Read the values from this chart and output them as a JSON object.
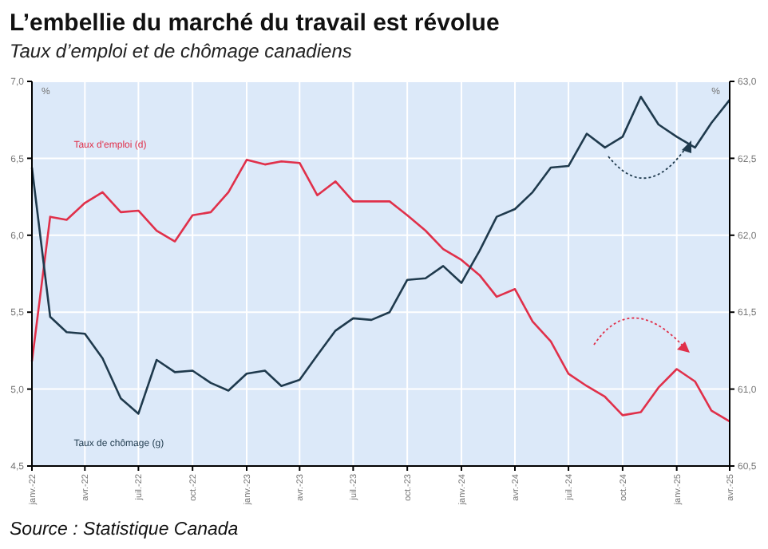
{
  "chart_data": {
    "type": "line",
    "title": "L’embellie du marché du travail est révolue",
    "subtitle": "Taux d’emploi et de chômage canadiens",
    "ylabel": "%",
    "y2label": "%",
    "annotations": [
      "Source : Statistique Canada"
    ],
    "x": [
      "2022-01",
      "2022-02",
      "2022-03",
      "2022-04",
      "2022-05",
      "2022-06",
      "2022-07",
      "2022-08",
      "2022-09",
      "2022-10",
      "2022-11",
      "2022-12",
      "2023-01",
      "2023-02",
      "2023-03",
      "2023-04",
      "2023-05",
      "2023-06",
      "2023-07",
      "2023-08",
      "2023-09",
      "2023-10",
      "2023-11",
      "2023-12",
      "2024-01",
      "2024-02",
      "2024-03",
      "2024-04",
      "2024-05",
      "2024-06",
      "2024-07",
      "2024-08",
      "2024-09",
      "2024-10",
      "2024-11",
      "2024-12",
      "2025-01",
      "2025-02",
      "2025-03",
      "2025-04"
    ],
    "series": [
      {
        "name": "Taux d'emploi (d)",
        "color": "#e0304a",
        "axis": "y2",
        "values": [
          61.18,
          62.12,
          62.1,
          62.21,
          62.28,
          62.15,
          62.16,
          62.03,
          61.96,
          62.13,
          62.15,
          62.28,
          62.49,
          62.46,
          62.48,
          62.47,
          62.26,
          62.35,
          62.22,
          62.22,
          62.22,
          62.13,
          62.03,
          61.91,
          61.84,
          61.74,
          61.6,
          61.65,
          61.44,
          61.31,
          61.1,
          61.02,
          60.95,
          60.83,
          60.85,
          61.01,
          61.13,
          61.05,
          60.86,
          60.79
        ]
      },
      {
        "name": "Taux de chômage (g)",
        "color": "#1f3a4d",
        "values": [
          6.44,
          5.47,
          5.37,
          5.36,
          5.2,
          4.94,
          4.84,
          5.19,
          5.11,
          5.12,
          5.04,
          4.99,
          5.1,
          5.12,
          5.02,
          5.06,
          5.22,
          5.38,
          5.46,
          5.45,
          5.5,
          5.71,
          5.72,
          5.8,
          5.69,
          5.9,
          6.12,
          6.17,
          6.28,
          6.44,
          6.45,
          6.66,
          6.57,
          6.64,
          6.9,
          6.72,
          6.64,
          6.57,
          6.73,
          6.88
        ]
      }
    ],
    "xlim": [
      "2022-01",
      "2025-04"
    ],
    "xticks": [
      {
        "value": "2022-01",
        "label": "janv.-22"
      },
      {
        "value": "2022-04",
        "label": "avr.-22"
      },
      {
        "value": "2022-07",
        "label": "juil.-22"
      },
      {
        "value": "2022-10",
        "label": "oct.-22"
      },
      {
        "value": "2023-01",
        "label": "janv.-23"
      },
      {
        "value": "2023-04",
        "label": "avr.-23"
      },
      {
        "value": "2023-07",
        "label": "juil.-23"
      },
      {
        "value": "2023-10",
        "label": "oct.-23"
      },
      {
        "value": "2024-01",
        "label": "janv.-24"
      },
      {
        "value": "2024-04",
        "label": "avr.-24"
      },
      {
        "value": "2024-07",
        "label": "juil.-24"
      },
      {
        "value": "2024-10",
        "label": "oct.-24"
      },
      {
        "value": "2025-01",
        "label": "janv.-25"
      },
      {
        "value": "2025-04",
        "label": "avr.-25"
      }
    ],
    "ylim": [
      4.5,
      7
    ],
    "yticks": [
      {
        "value": 4.5,
        "label": "4,5"
      },
      {
        "value": 5,
        "label": "5,0"
      },
      {
        "value": 5.5,
        "label": "5,5"
      },
      {
        "value": 6,
        "label": "6,0"
      },
      {
        "value": 6.5,
        "label": "6,5"
      },
      {
        "value": 7,
        "label": "7,0"
      }
    ],
    "y2lim": [
      60.5,
      63
    ],
    "y2ticks": [
      {
        "value": 60.5,
        "label": "60,5"
      },
      {
        "value": 61,
        "label": "61,0"
      },
      {
        "value": 61.5,
        "label": "61,5"
      },
      {
        "value": 62,
        "label": "62,0"
      },
      {
        "value": 62.5,
        "label": "62,5"
      },
      {
        "value": 63,
        "label": "63,0"
      }
    ],
    "grid": true,
    "legend": false,
    "marker": "none",
    "line_style": "solid"
  }
}
